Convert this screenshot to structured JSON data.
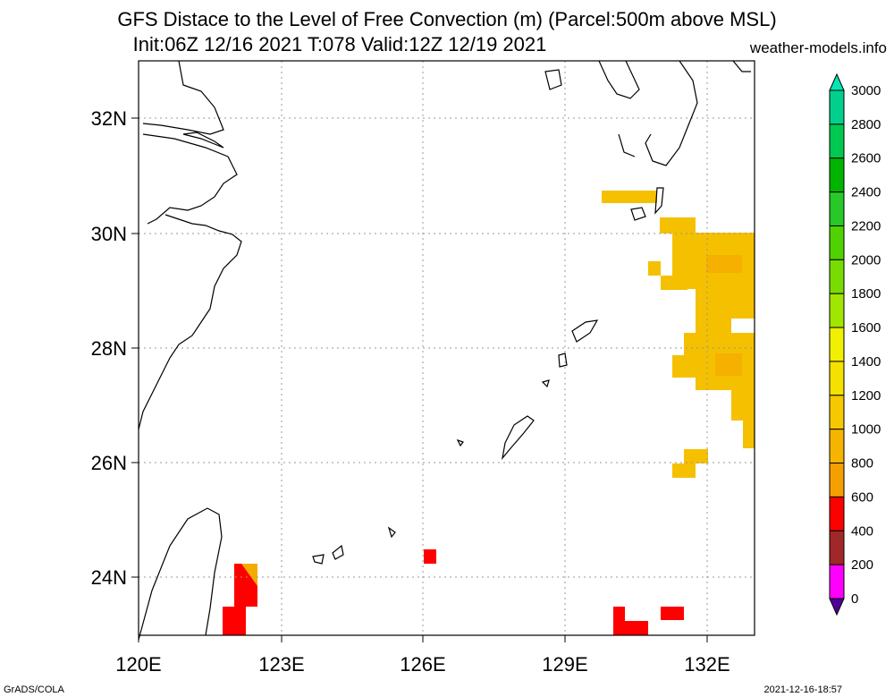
{
  "title_line1": "GFS Distace to the Level of Free Convection (m) (Parcel:500m above MSL)",
  "title_line2": "Init:06Z 12/16 2021 T:078 Valid:12Z 12/19 2021",
  "site": "weather-models.info",
  "footer_left": "GrADS/COLA",
  "footer_right": "2021-12-16-18:57",
  "map": {
    "lon_ticks": [
      "120E",
      "123E",
      "126E",
      "129E",
      "132E"
    ],
    "lat_ticks": [
      "32N",
      "30N",
      "28N",
      "26N",
      "24N"
    ]
  },
  "colorbar": {
    "labels": [
      "3000",
      "2800",
      "2600",
      "2400",
      "2200",
      "2000",
      "1800",
      "1600",
      "1400",
      "1200",
      "1000",
      "800",
      "600",
      "400",
      "200",
      "0"
    ],
    "colors": [
      "#00e6b4",
      "#00d08c",
      "#00c850",
      "#00b400",
      "#28c828",
      "#50d200",
      "#78dc00",
      "#a0e600",
      "#f0f000",
      "#f5e100",
      "#f5c800",
      "#f5b400",
      "#f5a000",
      "#ff0000",
      "#a02828",
      "#ff00ff",
      "#500096"
    ]
  },
  "colors": {
    "orange": "#f5b400",
    "red": "#ff0000",
    "cape": "#f5c800"
  }
}
